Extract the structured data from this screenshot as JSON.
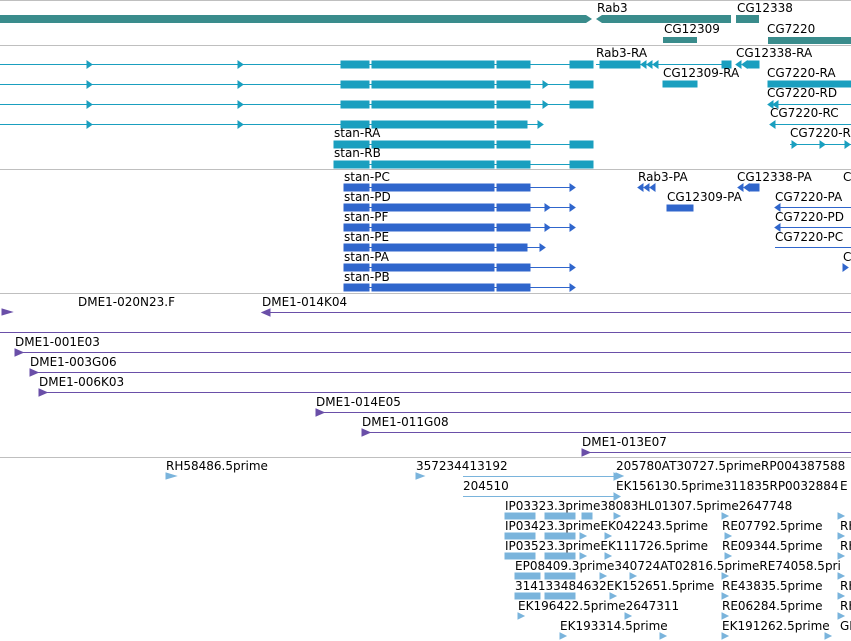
{
  "colors": {
    "gene": "#3a8c8c",
    "mrna": "#1a9fbf",
    "cds": "#3066cc",
    "clone": "#6a4fa8",
    "est": "#7ab4dc",
    "separator": "#bfbfbf"
  },
  "labels": {
    "rab3": "Rab3",
    "cg12338": "CG12338",
    "cg12309": "CG12309",
    "cg7220": "CG7220",
    "rab3_ra": "Rab3-RA",
    "cg12338_ra": "CG12338-RA",
    "cg12309_ra": "CG12309-RA",
    "cg7220_ra": "CG7220-RA",
    "cg7220_rd": "CG7220-RD",
    "cg7220_rc": "CG7220-RC",
    "cg7220_r": "CG7220-R",
    "stan_ra": "stan-RA",
    "stan_rb": "stan-RB",
    "stan_pc": "stan-PC",
    "stan_pd": "stan-PD",
    "stan_pf": "stan-PF",
    "stan_pe": "stan-PE",
    "stan_pa": "stan-PA",
    "stan_pb": "stan-PB",
    "rab3_pa": "Rab3-PA",
    "cg12338_pa": "CG12338-PA",
    "cg12309_pa": "CG12309-PA",
    "cg7220_pa": "CG7220-PA",
    "cg7220_pd": "CG7220-PD",
    "cg7220_pc": "CG7220-PC",
    "c1": "C",
    "c2": "C",
    "dme_020n23f": "DME1-020N23.F",
    "dme_014k04": "DME1-014K04",
    "dme_001e03": "DME1-001E03",
    "dme_003g06": "DME1-003G06",
    "dme_006k03": "DME1-006K03",
    "dme_014e05": "DME1-014E05",
    "dme_011g08": "DME1-011G08",
    "dme_013e07": "DME1-013E07",
    "rh58486": "RH58486.5prime",
    "n357234413192": "357234413192",
    "n205780": "205780AT30727.5primeRP004387588",
    "n204510": "204510",
    "ek156130": "EK156130.5prime311835RP0032884",
    "ip03323": "IP03323.3prime38083HL01307.5prime2647748",
    "ip03423": "IP03423.3primeEK042243.5prime",
    "re07792": "RE07792.5prime",
    "ip03523": "IP03523.3primeEK111726.5prime",
    "re09344": "RE09344.5prime",
    "ep08409": "EP08409.3prime340724AT02816.5primeRE74058.5pri",
    "n314133484632": "314133484632EK152651.5prime",
    "re43835": "RE43835.5prime",
    "ek196422": "EK196422.5prime2647311",
    "re06284": "RE06284.5prime",
    "ek193314": "EK193314.5prime",
    "ek191262": "EK191262.5prime",
    "e_edge": "E",
    "rh1": "RH",
    "rh2": "RH",
    "rh3": "RH",
    "rh4": "RH",
    "gi_edge": "GI"
  }
}
